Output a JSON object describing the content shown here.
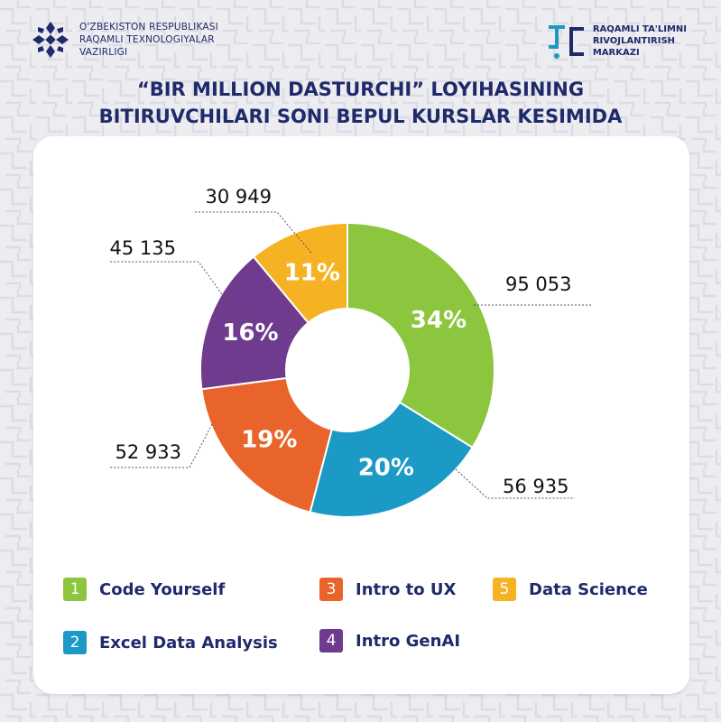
{
  "header": {
    "ministry_lines": [
      "O'ZBEKISTON RESPUBLIKASI",
      "RAQAMLI TEXNOLOGIYALAR",
      "VAZIRLIGI"
    ],
    "center_lines": [
      "RAQAMLI TA'LIMNI",
      "RIVOJLANTIRISH",
      "MARKAZI"
    ]
  },
  "title_lines": [
    "“BIR MILLION DASTURCHI” LOYIHASINING",
    "BITIRUVCHILARI SONI BEPUL KURSLAR KESIMIDA"
  ],
  "legend": [
    {
      "number": "1",
      "label": "Code Yourself",
      "color": "#8cc63f"
    },
    {
      "number": "2",
      "label": "Excel Data Analysis",
      "color": "#1a9ac4"
    },
    {
      "number": "3",
      "label": "Intro to UX",
      "color": "#e8642a"
    },
    {
      "number": "4",
      "label": "Intro GenAI",
      "color": "#6e3b8e"
    },
    {
      "number": "5",
      "label": "Data Science",
      "color": "#f5b324"
    }
  ],
  "chart_data": {
    "type": "pie",
    "variant": "donut",
    "categories": [
      "Code Yourself",
      "Excel Data Analysis",
      "Intro to UX",
      "Intro GenAI",
      "Data Science"
    ],
    "values": [
      95053,
      56935,
      52933,
      45135,
      30949
    ],
    "value_labels": [
      "95 053",
      "56 935",
      "52 933",
      "45 135",
      "30 949"
    ],
    "percent_labels": [
      "34%",
      "20%",
      "19%",
      "16%",
      "11%"
    ],
    "colors": [
      "#8cc63f",
      "#1a9ac4",
      "#e8642a",
      "#6e3b8e",
      "#f5b324"
    ],
    "start": "top, clockwise"
  }
}
